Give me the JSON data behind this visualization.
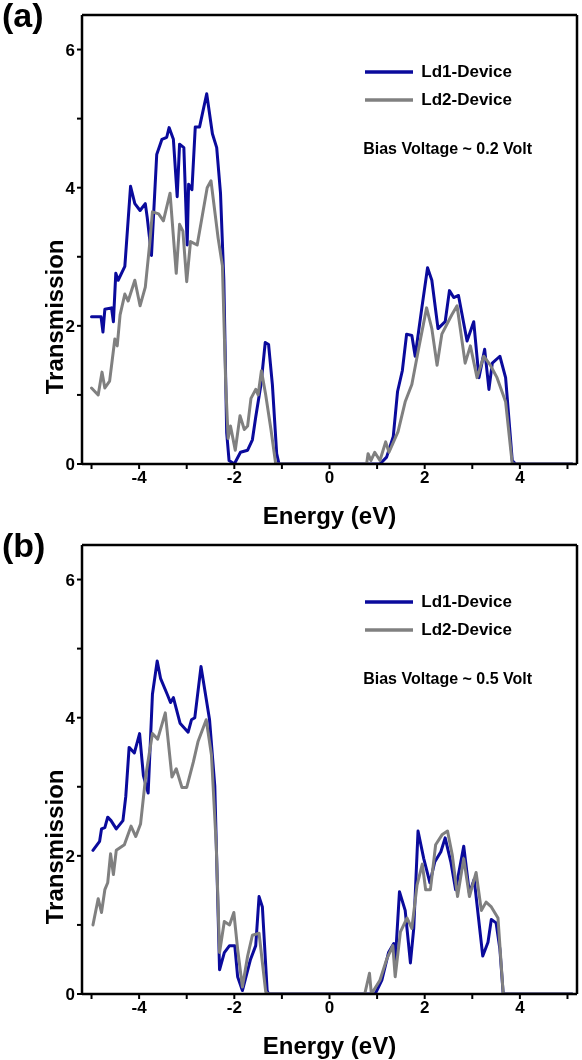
{
  "chart_data": [
    {
      "type": "line",
      "title": "(a)",
      "xlabel": "Energy (eV)",
      "ylabel": "Transmission",
      "annotations": [
        "Bias Voltage ~ 0.2 Volt"
      ],
      "xlim": [
        -5.2,
        5.2
      ],
      "ylim": [
        0,
        6.5
      ],
      "xticks": [
        {
          "value": -5,
          "label": null
        },
        -4,
        {
          "value": -3,
          "label": null
        },
        -2,
        {
          "value": -1,
          "label": null
        },
        0,
        {
          "value": 1,
          "label": null
        },
        2,
        {
          "value": 3,
          "label": null
        },
        4,
        {
          "value": 5,
          "label": null
        }
      ],
      "yticks": [
        0,
        {
          "value": 1,
          "label": null
        },
        2,
        {
          "value": 3,
          "label": null
        },
        4,
        {
          "value": 5,
          "label": null
        },
        6
      ],
      "grid": false,
      "legend": "top right",
      "marker": "none",
      "line_style": "solid",
      "series": [
        {
          "name": "Ld1-Device",
          "color": "#0a0a9c",
          "x": [
            -5.0,
            -4.8,
            -4.76,
            -4.72,
            -4.58,
            -4.54,
            -4.49,
            -4.44,
            -4.3,
            -4.18,
            -4.09,
            -3.98,
            -3.87,
            -3.83,
            -3.74,
            -3.63,
            -3.52,
            -3.42,
            -3.37,
            -3.28,
            -3.2,
            -3.15,
            -3.06,
            -2.99,
            -2.96,
            -2.89,
            -2.82,
            -2.73,
            -2.58,
            -2.46,
            -2.37,
            -2.29,
            -2.22,
            -2.16,
            -2.11,
            -2.0,
            -1.87,
            -1.72,
            -1.62,
            -1.55,
            -1.44,
            -1.35,
            -1.28,
            -1.2,
            -1.11,
            -1.06,
            0.81,
            1.06,
            1.2,
            1.34,
            1.43,
            1.53,
            1.62,
            1.73,
            1.8,
            1.94,
            2.06,
            2.15,
            2.28,
            2.43,
            2.52,
            2.61,
            2.71,
            2.89,
            3.03,
            3.14,
            3.26,
            3.35,
            3.42,
            3.58,
            3.7,
            3.84,
            3.91,
            5.1
          ],
          "values": [
            2.13,
            2.13,
            1.91,
            2.24,
            2.26,
            2.06,
            2.76,
            2.66,
            2.86,
            4.02,
            3.77,
            3.67,
            3.77,
            3.57,
            3.02,
            4.48,
            4.7,
            4.73,
            4.87,
            4.7,
            3.87,
            4.63,
            4.58,
            3.17,
            4.05,
            3.97,
            4.88,
            4.88,
            5.36,
            4.78,
            4.58,
            3.92,
            2.66,
            0.45,
            0.05,
            0,
            0.17,
            0.2,
            0.35,
            0.68,
            1.15,
            1.76,
            1.73,
            1.15,
            0.15,
            0,
            0,
            0,
            0.1,
            0.4,
            1.05,
            1.35,
            1.88,
            1.86,
            1.56,
            2.26,
            2.84,
            2.66,
            1.96,
            2.06,
            2.51,
            2.41,
            2.44,
            1.78,
            2.06,
            1.25,
            1.66,
            1.08,
            1.46,
            1.56,
            1.25,
            0.05,
            0,
            0
          ]
        },
        {
          "name": "Ld2-Device",
          "color": "#808080",
          "x": [
            -5.0,
            -4.86,
            -4.78,
            -4.72,
            -4.62,
            -4.51,
            -4.46,
            -4.4,
            -4.3,
            -4.23,
            -4.09,
            -3.98,
            -3.87,
            -3.78,
            -3.72,
            -3.59,
            -3.49,
            -3.35,
            -3.22,
            -3.15,
            -3.08,
            -3.0,
            -2.92,
            -2.78,
            -2.57,
            -2.49,
            -2.34,
            -2.25,
            -2.18,
            -2.13,
            -2.08,
            -1.98,
            -1.88,
            -1.79,
            -1.72,
            -1.65,
            -1.55,
            -1.5,
            -1.43,
            -1.34,
            -1.23,
            -1.13,
            0.78,
            0.81,
            0.87,
            0.95,
            1.06,
            1.18,
            1.25,
            1.44,
            1.59,
            1.73,
            1.87,
            2.04,
            2.15,
            2.26,
            2.36,
            2.57,
            2.68,
            2.85,
            2.96,
            3.1,
            3.24,
            3.38,
            3.52,
            3.7,
            3.84,
            5.1
          ],
          "values": [
            1.1,
            1.0,
            1.33,
            1.1,
            1.2,
            1.81,
            1.71,
            2.16,
            2.46,
            2.36,
            2.66,
            2.29,
            2.56,
            3.17,
            3.65,
            3.62,
            3.52,
            3.92,
            2.76,
            3.47,
            3.37,
            2.64,
            3.22,
            3.17,
            4.0,
            4.1,
            3.27,
            2.87,
            1.15,
            0.37,
            0.55,
            0.2,
            0.7,
            0.5,
            0.55,
            0.95,
            1.08,
            1.0,
            1.35,
            1.0,
            0.5,
            0,
            0,
            0.15,
            0.05,
            0.17,
            0.05,
            0.32,
            0.17,
            0.47,
            0.9,
            1.15,
            1.66,
            2.26,
            1.96,
            1.43,
            1.88,
            2.16,
            2.29,
            1.46,
            1.71,
            1.25,
            1.56,
            1.43,
            1.25,
            0.9,
            0,
            0
          ]
        }
      ]
    },
    {
      "type": "line",
      "title": "(b)",
      "xlabel": "Energy (eV)",
      "ylabel": "Transmission",
      "annotations": [
        "Bias Voltage ~ 0.5 Volt"
      ],
      "xlim": [
        -5.2,
        5.2
      ],
      "ylim": [
        0,
        6.5
      ],
      "xticks": [
        {
          "value": -5,
          "label": null
        },
        -4,
        {
          "value": -3,
          "label": null
        },
        -2,
        {
          "value": -1,
          "label": null
        },
        0,
        {
          "value": 1,
          "label": null
        },
        2,
        {
          "value": 3,
          "label": null
        },
        4,
        {
          "value": 5,
          "label": null
        }
      ],
      "yticks": [
        0,
        {
          "value": 1,
          "label": null
        },
        2,
        {
          "value": 3,
          "label": null
        },
        4,
        {
          "value": 5,
          "label": null
        },
        6
      ],
      "grid": false,
      "legend": "top right",
      "marker": "none",
      "line_style": "solid",
      "series": [
        {
          "name": "Ld1-Device",
          "color": "#0a0a9c",
          "x": [
            -4.97,
            -4.83,
            -4.79,
            -4.72,
            -4.66,
            -4.59,
            -4.48,
            -4.34,
            -4.28,
            -4.21,
            -4.1,
            -3.99,
            -3.91,
            -3.81,
            -3.72,
            -3.62,
            -3.55,
            -3.41,
            -3.34,
            -3.28,
            -3.14,
            -2.97,
            -2.9,
            -2.83,
            -2.7,
            -2.59,
            -2.52,
            -2.41,
            -2.31,
            -2.21,
            -2.1,
            -1.99,
            -1.93,
            -1.83,
            -1.66,
            -1.55,
            -1.48,
            -1.41,
            -1.31,
            -1.28,
            0.78,
            0.96,
            1.1,
            1.24,
            1.35,
            1.38,
            1.47,
            1.59,
            1.7,
            1.77,
            1.86,
            1.98,
            2.11,
            2.21,
            2.34,
            2.43,
            2.55,
            2.65,
            2.82,
            2.94,
            3.04,
            3.22,
            3.33,
            3.4,
            3.5,
            3.58,
            3.65,
            5.1
          ],
          "values": [
            2.08,
            2.21,
            2.39,
            2.41,
            2.56,
            2.51,
            2.39,
            2.51,
            2.86,
            3.57,
            3.49,
            3.77,
            3.16,
            2.91,
            4.34,
            4.82,
            4.57,
            4.34,
            4.22,
            4.29,
            3.92,
            3.79,
            3.97,
            4.0,
            4.74,
            4.27,
            3.97,
            3.01,
            0.35,
            0.6,
            0.7,
            0.7,
            0.25,
            0.05,
            0.5,
            0.7,
            1.41,
            1.26,
            0.05,
            0,
            0,
            0,
            0.2,
            0.6,
            0.73,
            0.45,
            1.48,
            1.21,
            0.45,
            0.95,
            2.36,
            1.96,
            1.61,
            1.91,
            2.06,
            2.26,
            1.91,
            1.51,
            2.14,
            1.46,
            1.66,
            0.55,
            0.75,
            1.08,
            1.03,
            0.65,
            0,
            0
          ]
        },
        {
          "name": "Ld2-Device",
          "color": "#808080",
          "x": [
            -4.97,
            -4.86,
            -4.79,
            -4.72,
            -4.66,
            -4.6,
            -4.54,
            -4.48,
            -4.31,
            -4.17,
            -4.07,
            -3.97,
            -3.86,
            -3.72,
            -3.61,
            -3.45,
            -3.31,
            -3.22,
            -3.1,
            -3.0,
            -2.86,
            -2.76,
            -2.59,
            -2.48,
            -2.38,
            -2.31,
            -2.21,
            -2.1,
            -2.01,
            -1.93,
            -1.83,
            -1.72,
            -1.62,
            -1.48,
            -1.34,
            -1.28,
            0.74,
            0.84,
            0.88,
            1.06,
            1.2,
            1.33,
            1.38,
            1.49,
            1.63,
            1.73,
            1.84,
            1.95,
            2.02,
            2.12,
            2.23,
            2.37,
            2.48,
            2.58,
            2.69,
            2.82,
            2.94,
            3.08,
            3.19,
            3.29,
            3.4,
            3.54,
            3.65,
            5.1
          ],
          "values": [
            1.0,
            1.38,
            1.18,
            1.51,
            1.61,
            2.03,
            1.73,
            2.08,
            2.16,
            2.43,
            2.28,
            2.46,
            3.16,
            3.77,
            3.69,
            4.07,
            3.14,
            3.26,
            2.99,
            2.99,
            3.36,
            3.66,
            3.97,
            3.46,
            2.16,
            0.6,
            1.05,
            1.0,
            1.18,
            0.65,
            0.1,
            0.55,
            0.85,
            0.88,
            0.03,
            0,
            0,
            0.3,
            0,
            0.2,
            0.5,
            0.7,
            0.25,
            0.9,
            1.1,
            0.95,
            1.58,
            1.88,
            1.51,
            1.51,
            2.16,
            2.31,
            2.36,
            2.01,
            1.41,
            1.96,
            1.41,
            1.76,
            1.21,
            1.33,
            1.26,
            1.1,
            0,
            0
          ]
        }
      ]
    }
  ]
}
